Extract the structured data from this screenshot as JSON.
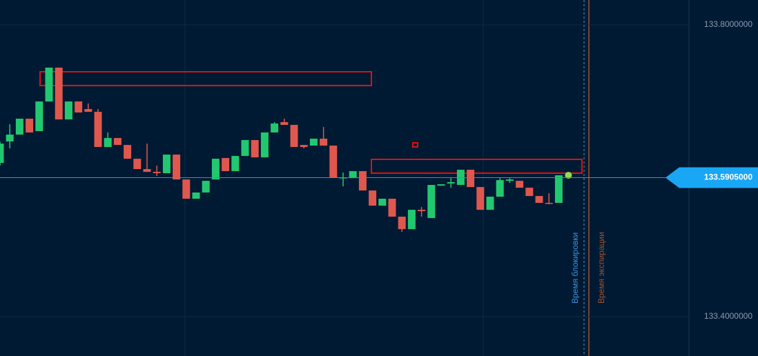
{
  "chart_data": {
    "type": "candlestick",
    "up_color": "#22c86f",
    "down_color": "#e0574d",
    "ylim": [
      133.346,
      133.834
    ],
    "yticks": [
      {
        "value": 133.8,
        "label": "133.8000000"
      },
      {
        "value": 133.4,
        "label": "133.4000000"
      }
    ],
    "grid": true,
    "open": [
      133.6107,
      133.6401,
      133.6495,
      133.6713,
      133.6543,
      133.6949,
      133.7413,
      133.6703,
      133.6949,
      133.6845,
      133.6807,
      133.6325,
      133.6448,
      133.6353,
      133.6164,
      133.6022,
      133.5984,
      133.5966,
      133.6221,
      133.588,
      133.5616,
      133.5701,
      133.588,
      133.6174,
      133.5994,
      133.6202,
      133.642,
      133.6183,
      133.6524,
      133.6666,
      133.6628,
      133.6353,
      133.6344,
      133.6439,
      133.6344,
      133.5899,
      133.5899,
      133.5994,
      133.5729,
      133.5521,
      133.5616,
      133.537,
      133.5199,
      133.5464,
      133.5351,
      133.5795,
      133.5824,
      133.5805,
      133.6013,
      133.5776,
      133.5464,
      133.5644,
      133.5861,
      133.5861,
      133.5767,
      133.5653,
      133.5559,
      133.5559
    ],
    "high": [
      133.6401,
      133.6637,
      133.6713,
      133.6713,
      133.6949,
      133.7413,
      133.7413,
      133.6949,
      133.6949,
      133.6921,
      133.6845,
      133.6524,
      133.6448,
      133.6353,
      133.6164,
      133.6372,
      133.607,
      133.6221,
      133.6221,
      133.588,
      133.5701,
      133.5861,
      133.6164,
      133.6174,
      133.6202,
      133.642,
      133.642,
      133.6524,
      133.6666,
      133.6713,
      133.6628,
      133.6353,
      133.6439,
      133.6599,
      133.6344,
      133.5975,
      133.5994,
      133.5994,
      133.5729,
      133.5616,
      133.5616,
      133.537,
      133.5464,
      133.5502,
      133.5805,
      133.5814,
      133.5899,
      133.6013,
      133.6013,
      133.5776,
      133.5644,
      133.5899,
      133.5899,
      133.5861,
      133.5767,
      133.5653,
      133.5691,
      133.5937
    ],
    "low": [
      133.607,
      133.6306,
      133.6495,
      133.6524,
      133.6543,
      133.6949,
      133.6703,
      133.6703,
      133.6798,
      133.6807,
      133.6325,
      133.6325,
      133.6353,
      133.6164,
      133.6022,
      133.5984,
      133.5928,
      133.5966,
      133.588,
      133.5616,
      133.5616,
      133.5701,
      133.588,
      133.5994,
      133.5994,
      133.6202,
      133.6183,
      133.6183,
      133.6524,
      133.6628,
      133.6325,
      133.6306,
      133.6344,
      133.6344,
      133.5909,
      133.5786,
      133.5899,
      133.5729,
      133.5521,
      133.5521,
      133.537,
      133.5161,
      133.5199,
      133.537,
      133.5351,
      133.5795,
      133.5767,
      133.5805,
      133.5776,
      133.5464,
      133.5464,
      133.5644,
      133.5833,
      133.5767,
      133.5653,
      133.5559,
      133.554,
      133.5559
    ],
    "close": [
      133.6372,
      133.6495,
      133.6713,
      133.6524,
      133.6949,
      133.7413,
      133.6703,
      133.6949,
      133.6798,
      133.6807,
      133.6325,
      133.6448,
      133.6353,
      133.6164,
      133.6022,
      133.5984,
      133.5966,
      133.6221,
      133.588,
      133.5616,
      133.5701,
      133.5861,
      133.6164,
      133.5994,
      133.6202,
      133.642,
      133.6183,
      133.6524,
      133.6647,
      133.6628,
      133.6325,
      133.6325,
      133.6439,
      133.6344,
      133.5909,
      133.5909,
      133.5994,
      133.5729,
      133.5521,
      133.5616,
      133.537,
      133.5199,
      133.5464,
      133.5445,
      133.5805,
      133.5814,
      133.5843,
      133.6013,
      133.5776,
      133.5464,
      133.5644,
      133.5871,
      133.588,
      133.5767,
      133.5653,
      133.5559,
      133.5549,
      133.5937
    ],
    "current_price": {
      "value": 133.5905,
      "label": "133.5905000"
    },
    "annotations": [
      "Время блокировки",
      "Время экспирации"
    ]
  }
}
